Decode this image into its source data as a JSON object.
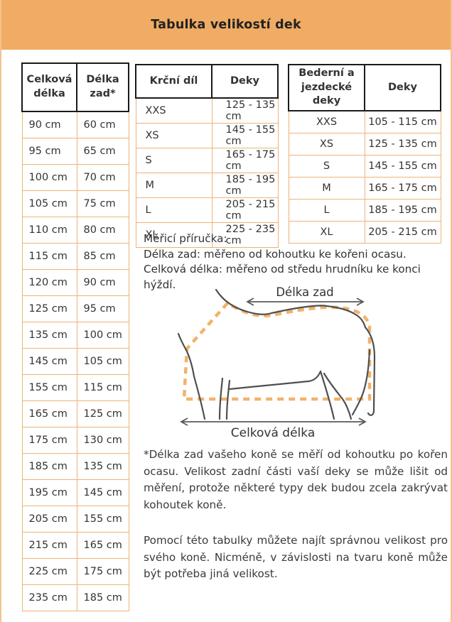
{
  "header": {
    "title": "Tabulka velikostí dek"
  },
  "size_table": {
    "headers": [
      "Celková délka",
      "Délka zad*"
    ],
    "rows": [
      [
        "90 cm",
        "60 cm"
      ],
      [
        "95 cm",
        "65 cm"
      ],
      [
        "100 cm",
        "70 cm"
      ],
      [
        "105 cm",
        "75 cm"
      ],
      [
        "110 cm",
        "80 cm"
      ],
      [
        "115 cm",
        "85 cm"
      ],
      [
        "120 cm",
        "90 cm"
      ],
      [
        "125 cm",
        "95 cm"
      ],
      [
        "135 cm",
        "100 cm"
      ],
      [
        "145 cm",
        "105 cm"
      ],
      [
        "155 cm",
        "115 cm"
      ],
      [
        "165 cm",
        "125 cm"
      ],
      [
        "175 cm",
        "130 cm"
      ],
      [
        "185 cm",
        "135 cm"
      ],
      [
        "195 cm",
        "145 cm"
      ],
      [
        "205 cm",
        "155 cm"
      ],
      [
        "215 cm",
        "165 cm"
      ],
      [
        "225 cm",
        "175 cm"
      ],
      [
        "235 cm",
        "185 cm"
      ]
    ]
  },
  "neck_table": {
    "headers": [
      "Krční díl",
      "Deky"
    ],
    "rows": [
      [
        "XXS",
        "125 - 135 cm"
      ],
      [
        "XS",
        "145 - 155 cm"
      ],
      [
        "S",
        "165 - 175 cm"
      ],
      [
        "M",
        "185 - 195 cm"
      ],
      [
        "L",
        "205 - 215 cm"
      ],
      [
        "XL",
        "225 - 235 cm"
      ]
    ]
  },
  "loin_table": {
    "headers": [
      "Bederní a jezdecké deky",
      "Deky"
    ],
    "rows": [
      [
        "XXS",
        "105 - 115 cm"
      ],
      [
        "XS",
        "125 - 135 cm"
      ],
      [
        "S",
        "145 - 155 cm"
      ],
      [
        "M",
        "165 - 175 cm"
      ],
      [
        "L",
        "185 - 195 cm"
      ],
      [
        "XL",
        "205 - 215 cm"
      ]
    ]
  },
  "guide": {
    "line1": "Měřicí příručka:",
    "line2": "Délka zad: měřeno od kohoutku ke kořeni ocasu.",
    "line3": "Celková délka: měřeno od středu hrudníku ke konci hýždí."
  },
  "diagram": {
    "top_label": "Délka zad",
    "bottom_label": "Celková délka"
  },
  "notes": {
    "p1": "*Délka zad vašeho koně se měří od kohoutku po kořen ocasu. Velikost zadní části vaší deky se může lišit od měření, protože některé typy dek budou zcela zakrývat kohoutek koně.",
    "p2": "Pomocí této tabulky můžete najít správnou velikost pro svého koně. Nicméně, v závislosti na tvaru koně může být potřeba jiná velikost."
  },
  "colors": {
    "accent": "#F0AC64",
    "table_border": "#EDB377",
    "header_cell_border": "#1A1A1A",
    "dashed_blanket": "#F2B26B",
    "horse_stroke": "#4F4F4F",
    "text": "#333333"
  }
}
